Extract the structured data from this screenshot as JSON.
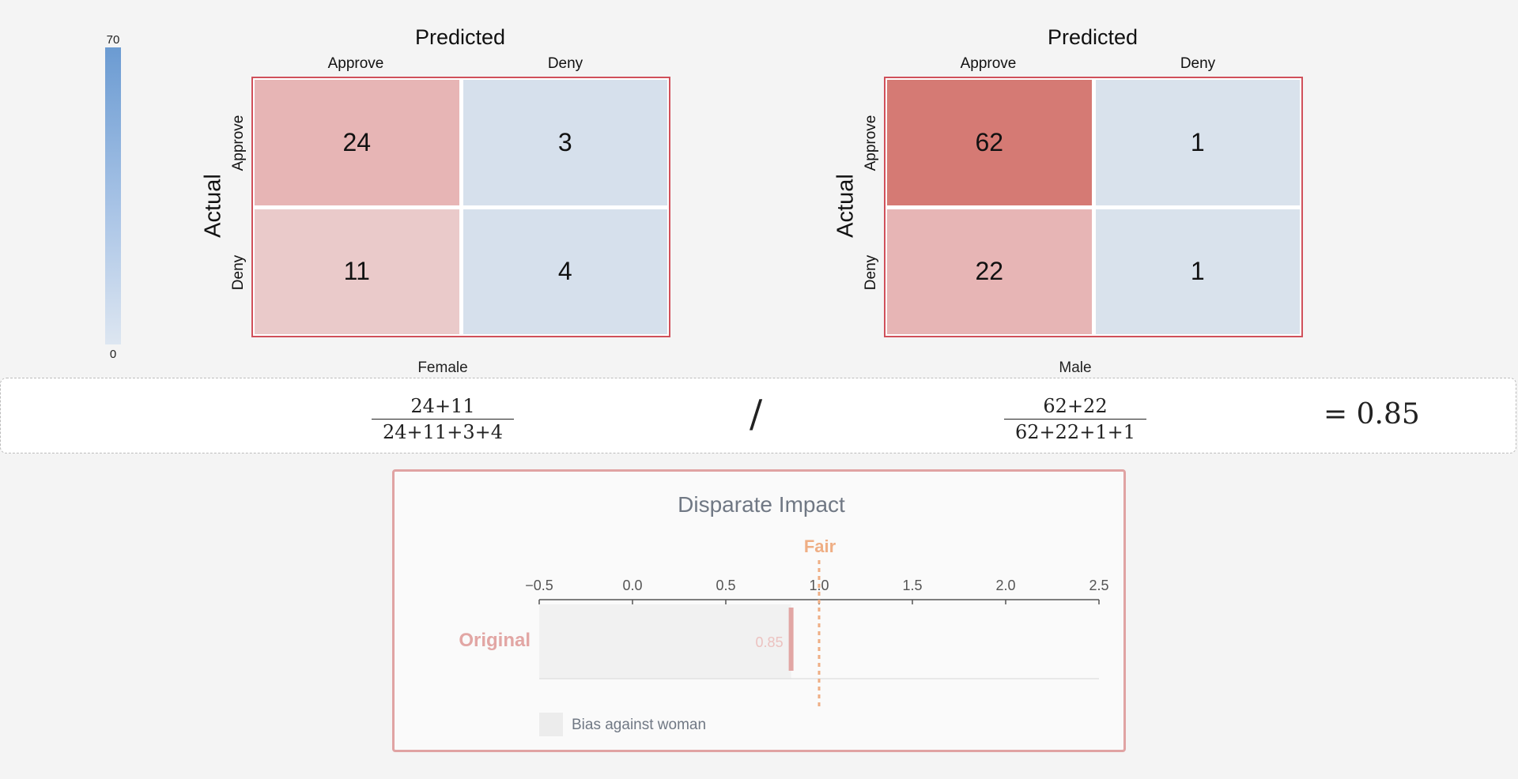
{
  "color_scale": {
    "max_label": "70",
    "min_label": "0",
    "min_color": "#dde6f1",
    "max_color": "#6b9bd2"
  },
  "matrices": [
    {
      "group": "Female",
      "title": "Predicted",
      "y_title": "Actual",
      "col_labels": [
        "Approve",
        "Deny"
      ],
      "row_labels": [
        "Approve",
        "Deny"
      ],
      "cells": [
        [
          "24",
          "3"
        ],
        [
          "11",
          "4"
        ]
      ],
      "cell_colors": [
        [
          "#e7b5b5",
          "#d6e0ec"
        ],
        [
          "#eacaca",
          "#d6e0ec"
        ]
      ]
    },
    {
      "group": "Male",
      "title": "Predicted",
      "y_title": "Actual",
      "col_labels": [
        "Approve",
        "Deny"
      ],
      "row_labels": [
        "Approve",
        "Deny"
      ],
      "cells": [
        [
          "62",
          "1"
        ],
        [
          "22",
          "1"
        ]
      ],
      "cell_colors": [
        [
          "#d57a74",
          "#d9e2ec"
        ],
        [
          "#e7b5b5",
          "#d9e2ec"
        ]
      ]
    }
  ],
  "formula": {
    "left_num": "24+11",
    "left_den": "24+11+3+4",
    "slash": "/",
    "right_num": "62+22",
    "right_den": "62+22+1+1",
    "result": "= 0.85"
  },
  "disparate_impact": {
    "title": "Disparate Impact",
    "fair_label": "Fair",
    "row_label": "Original",
    "value_label": "0.85",
    "legend_label": "Bias against woman",
    "chart_data": {
      "type": "bar",
      "categories": [
        "Original"
      ],
      "values": [
        0.85
      ],
      "title": "Disparate Impact",
      "xlim": [
        -0.5,
        2.5
      ],
      "x_ticks": [
        "−0.5",
        "0.0",
        "0.5",
        "1.0",
        "1.5",
        "2.0",
        "2.5"
      ],
      "reference_line": {
        "value": 1.0,
        "label": "Fair"
      },
      "bar_color": "#e2a6a4",
      "fair_color": "#efae84",
      "legend": [
        "Bias against woman"
      ]
    }
  }
}
